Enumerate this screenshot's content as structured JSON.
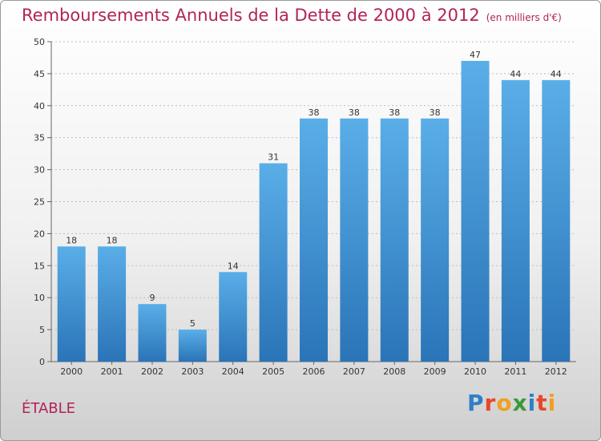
{
  "title": "Remboursements Annuels de la Dette de 2000 à 2012",
  "unit_note": "(en milliers d'€)",
  "place_label": "ÉTABLE",
  "logo": {
    "letters": [
      "P",
      "r",
      "o",
      "x",
      "i",
      "t",
      "i"
    ],
    "colors": [
      "#2f7fc8",
      "#e8462a",
      "#f0a020",
      "#3a9a3a",
      "#2f7fc8",
      "#e8462a",
      "#f0a020"
    ]
  },
  "colors": {
    "bar_top": "#5aaee8",
    "bar_bottom": "#2a74b8",
    "title": "#b0245a"
  },
  "chart_data": {
    "type": "bar",
    "categories": [
      "2000",
      "2001",
      "2002",
      "2003",
      "2004",
      "2005",
      "2006",
      "2007",
      "2008",
      "2009",
      "2010",
      "2011",
      "2012"
    ],
    "values": [
      18,
      18,
      9,
      5,
      14,
      31,
      38,
      38,
      38,
      38,
      47,
      44,
      44
    ],
    "yticks": [
      0,
      5,
      10,
      15,
      20,
      25,
      30,
      35,
      40,
      45,
      50
    ],
    "ylim": [
      0,
      50
    ],
    "grid": "horizontal dotted",
    "legend": "none"
  }
}
